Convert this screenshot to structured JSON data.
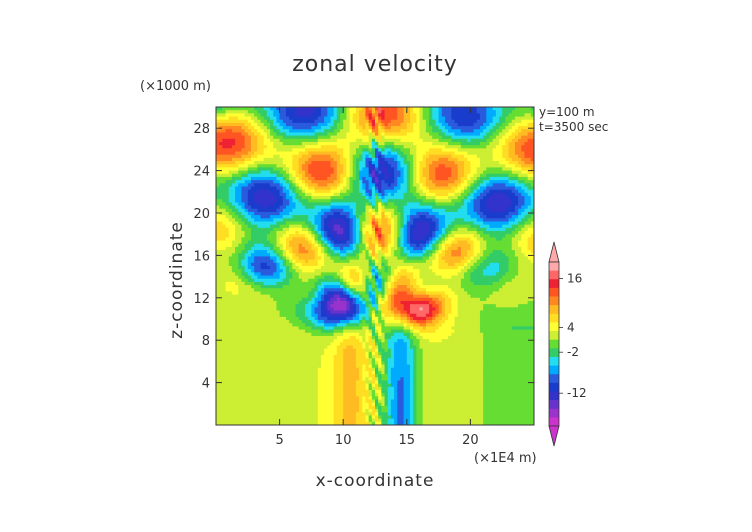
{
  "chart_data": {
    "type": "heatmap",
    "title": "zonal velocity",
    "xlabel": "x-coordinate",
    "ylabel": "z-coordinate",
    "x_unit": "(×1E4 m)",
    "y_unit": "(×1000 m)",
    "annotations": [
      "y=100 m",
      "t=3500 sec"
    ],
    "xlim": [
      0,
      25
    ],
    "ylim": [
      0,
      30
    ],
    "x_ticks": [
      5,
      10,
      15,
      20
    ],
    "y_ticks": [
      4,
      8,
      12,
      16,
      20,
      24,
      28
    ],
    "colorbar": {
      "labels": [
        16,
        4,
        -2,
        -12
      ],
      "range": [
        -20,
        20
      ],
      "colors": [
        "#cc33cc",
        "#9933cc",
        "#6633cc",
        "#3333cc",
        "#1a3ccc",
        "#2a5bdd",
        "#00aaff",
        "#22ddee",
        "#33cc66",
        "#66dd33",
        "#ccee33",
        "#ffff33",
        "#ffdd22",
        "#ffbb22",
        "#ff8822",
        "#ff5522",
        "#ee2233",
        "#ff6666",
        "#ffaaaa"
      ]
    },
    "grid": false
  }
}
